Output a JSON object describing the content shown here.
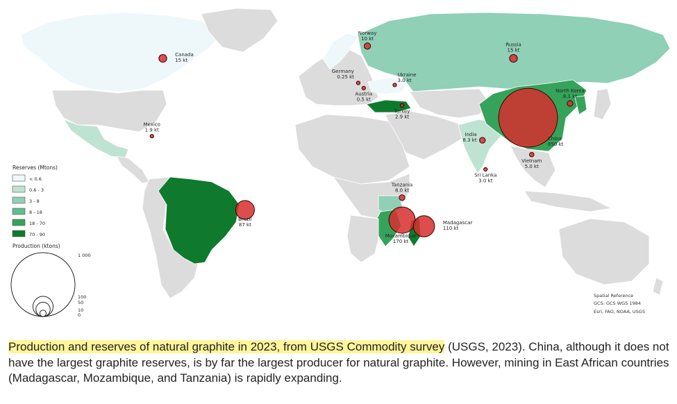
{
  "colors": {
    "land_nodata": "#dcdcdc",
    "class_1": "#eef7fa",
    "class_2": "#bfe3d3",
    "class_3": "#8fd0b7",
    "class_4": "#5ebf8e",
    "class_5": "#35a35a",
    "class_6": "#0f7a2d",
    "bubble_fill": "#d62f2f",
    "bubble_stroke": "#3a0000"
  },
  "legend": {
    "reserves_title": "Reserves (Mtons)",
    "reserves_classes": [
      "< 0.6",
      "0.6 - 3",
      "3 - 8",
      "8 - 18",
      "18 - 70",
      "70 - 90"
    ],
    "production_title": "Production (ktons)",
    "production_sizes": [
      {
        "value_kt": 1000,
        "label": "1 000"
      },
      {
        "value_kt": 100,
        "label": "100"
      },
      {
        "value_kt": 50,
        "label": "50"
      },
      {
        "value_kt": 10,
        "label": "10"
      },
      {
        "value_kt": 0,
        "label": "0"
      }
    ]
  },
  "credits": {
    "line1": "Spatial Reference",
    "line2": "GCS: GCS WGS 1984",
    "line3": "Esri, FAO, NOAA, USGS"
  },
  "producers": [
    {
      "name": "Canada",
      "production": "15 kt",
      "value_kt": 15,
      "lon": -96,
      "lat": 62
    },
    {
      "name": "Mexico",
      "production": "1.9 kt",
      "value_kt": 1.9,
      "lon": -102,
      "lat": 24
    },
    {
      "name": "Brazil",
      "production": "87 kt",
      "value_kt": 87,
      "lon": -51,
      "lat": -12
    },
    {
      "name": "Norway",
      "production": "10 kt",
      "value_kt": 10,
      "lon": 16,
      "lat": 68
    },
    {
      "name": "Germany",
      "production": "0.25 kt",
      "value_kt": 0.25,
      "lon": 11,
      "lat": 50
    },
    {
      "name": "Austria",
      "production": "0.5 kt",
      "value_kt": 0.5,
      "lon": 14,
      "lat": 47.5
    },
    {
      "name": "Ukraine",
      "production": "3.0 kt",
      "value_kt": 3.0,
      "lon": 31,
      "lat": 49
    },
    {
      "name": "Turkey",
      "production": "2.9 kt",
      "value_kt": 2.9,
      "lon": 35,
      "lat": 39
    },
    {
      "name": "Russia",
      "production": "15 kt",
      "value_kt": 15,
      "lon": 96,
      "lat": 62
    },
    {
      "name": "North Korea",
      "production": "8.1 kt",
      "value_kt": 8.1,
      "lon": 127,
      "lat": 40
    },
    {
      "name": "China",
      "production": "850 kt",
      "value_kt": 850,
      "lon": 104,
      "lat": 33
    },
    {
      "name": "India",
      "production": "8.3 kt",
      "value_kt": 8.3,
      "lon": 79,
      "lat": 22
    },
    {
      "name": "Sri Lanka",
      "production": "3.0 kt",
      "value_kt": 3.0,
      "lon": 80.7,
      "lat": 7.8
    },
    {
      "name": "Vietnam",
      "production": "5.0 kt",
      "value_kt": 5.0,
      "lon": 106,
      "lat": 15
    },
    {
      "name": "Tanzania",
      "production": "8.0 kt",
      "value_kt": 8.0,
      "lon": 35,
      "lat": -6
    },
    {
      "name": "Mozambique",
      "production": "170 kt",
      "value_kt": 170,
      "lon": 35,
      "lat": -17
    },
    {
      "name": "Madagascar",
      "production": "110 kt",
      "value_kt": 110,
      "lon": 47,
      "lat": -20
    }
  ],
  "caption": {
    "highlight": "Production and reserves of natural graphite in 2023, from USGS Commodity survey",
    "rest": " (USGS, 2023). China, although it does not have the largest graphite reserves, is by far the largest producer for natural graphite. However, mining in East African countries (Madagascar, Mozambique, and Tanzania) is rapidly expanding."
  }
}
